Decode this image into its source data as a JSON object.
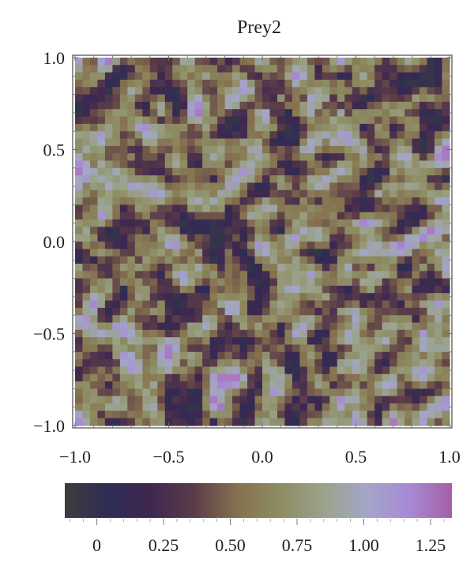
{
  "chart_data": {
    "type": "heatmap",
    "title": "Prey2",
    "xlim": [
      -1.0,
      1.0
    ],
    "ylim": [
      -1.0,
      1.0
    ],
    "x_ticks": [
      "−1.0",
      "−0.5",
      "0.0",
      "0.5",
      "1.0"
    ],
    "y_ticks": [
      "1.0",
      "0.5",
      "0.0",
      "−0.5",
      "−1.0"
    ],
    "x_tick_values": [
      -1.0,
      -0.5,
      0.0,
      0.5,
      1.0
    ],
    "y_tick_values": [
      1.0,
      0.5,
      0.0,
      -0.5,
      -1.0
    ],
    "grid": false,
    "colorbar": {
      "range": [
        -0.12,
        1.33
      ],
      "tick_labels": [
        "0",
        "0.25",
        "0.50",
        "0.75",
        "1.00",
        "1.25"
      ],
      "tick_values": [
        0,
        0.25,
        0.5,
        0.75,
        1.0,
        1.25
      ],
      "colors": [
        "#3d3d3d",
        "#2f2c55",
        "#3e2850",
        "#5a3c48",
        "#85704f",
        "#8d8d63",
        "#9aa28a",
        "#a3a6c7",
        "#a78ad6",
        "#a65ea4"
      ]
    },
    "colors": {
      "frame": "#6e6e6e",
      "axis_text": "#222222"
    }
  }
}
